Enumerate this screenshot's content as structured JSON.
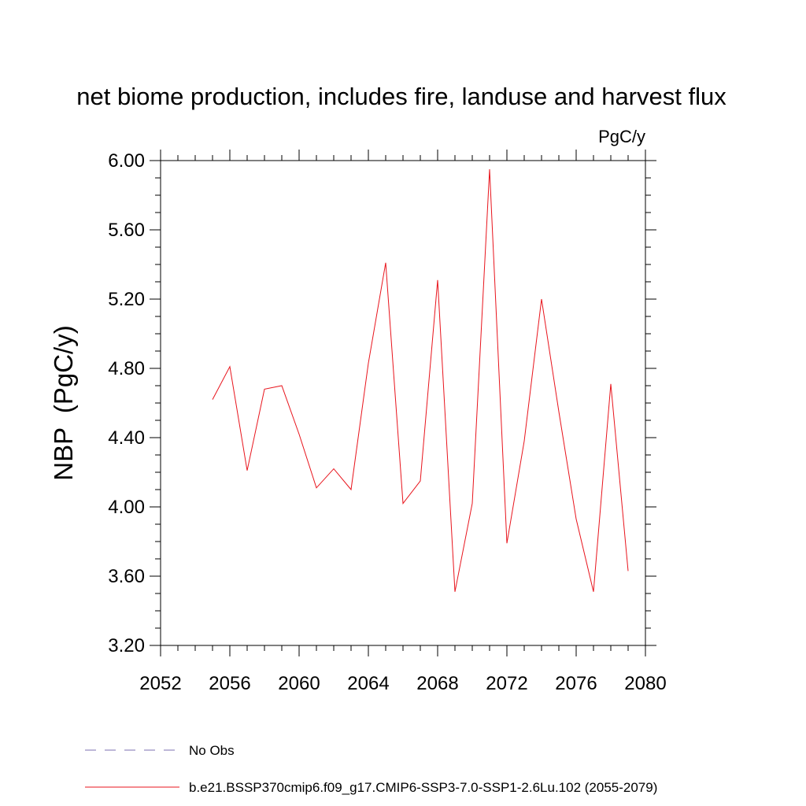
{
  "chart_data": {
    "type": "line",
    "title": "net biome production, includes fire, landuse and harvest flux",
    "units_label": "PgC/y",
    "ylabel": "NBP  (PgC/y)",
    "xlabel": "",
    "xlim": [
      2052,
      2080
    ],
    "ylim": [
      3.2,
      6.0
    ],
    "x_ticks": [
      2052,
      2056,
      2060,
      2064,
      2068,
      2072,
      2076,
      2080
    ],
    "x_tick_labels": [
      "2052",
      "2056",
      "2060",
      "2064",
      "2068",
      "2072",
      "2076",
      "2080"
    ],
    "y_ticks": [
      3.2,
      3.6,
      4.0,
      4.4,
      4.8,
      5.2,
      5.6,
      6.0
    ],
    "y_tick_labels": [
      "3.20",
      "3.60",
      "4.00",
      "4.40",
      "4.80",
      "5.20",
      "5.60",
      "6.00"
    ],
    "grid": false,
    "legend_position": "bottom",
    "series": [
      {
        "name": "b.e21.BSSP370cmip6.f09_g17.CMIP6-SSP3-7.0-SSP1-2.6Lu.102 (2055-2079)",
        "color": "#e8141c",
        "style": "solid",
        "x": [
          2055,
          2056,
          2057,
          2058,
          2059,
          2060,
          2061,
          2062,
          2063,
          2064,
          2065,
          2066,
          2067,
          2068,
          2069,
          2070,
          2071,
          2072,
          2073,
          2074,
          2075,
          2076,
          2077,
          2078,
          2079
        ],
        "y": [
          4.62,
          4.81,
          4.21,
          4.68,
          4.7,
          4.42,
          4.11,
          4.22,
          4.1,
          4.83,
          5.41,
          4.02,
          4.15,
          5.31,
          3.51,
          4.02,
          5.95,
          3.79,
          4.38,
          5.2,
          4.55,
          3.93,
          3.51,
          4.71,
          3.63
        ]
      }
    ],
    "legend": [
      {
        "label": "No Obs",
        "color": "#7b6fb0",
        "style": "dashed"
      },
      {
        "label": "b.e21.BSSP370cmip6.f09_g17.CMIP6-SSP3-7.0-SSP1-2.6Lu.102 (2055-2079)",
        "color": "#e8141c",
        "style": "solid"
      }
    ]
  }
}
